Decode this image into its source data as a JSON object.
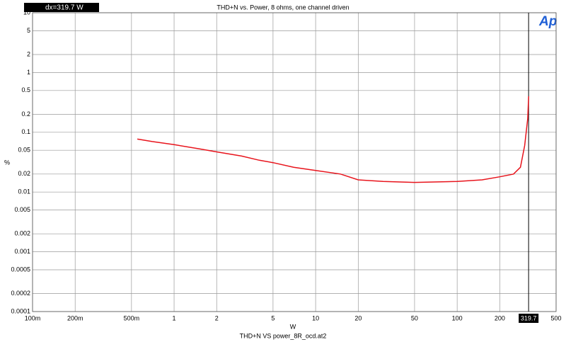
{
  "chart_data": {
    "type": "line",
    "title": "THD+N vs. Power, 8 ohms, one channel driven",
    "x_label": "W",
    "y_label": "%",
    "footer": "THD+N VS power_8R_ocd.at2",
    "logo": "Ap",
    "cursor_readout": "dx=319.7  W",
    "cursor_x": 319.7,
    "x_log": true,
    "y_log": true,
    "grid": true,
    "xlim": [
      0.1,
      500
    ],
    "ylim": [
      0.0001,
      10
    ],
    "xticks": [
      {
        "value": 0.1,
        "label": "100m"
      },
      {
        "value": 0.2,
        "label": "200m"
      },
      {
        "value": 0.5,
        "label": "500m"
      },
      1,
      2,
      5,
      10,
      20,
      50,
      100,
      200,
      500
    ],
    "yticks": [
      10,
      5,
      2,
      1,
      0.5,
      0.2,
      0.1,
      0.05,
      0.02,
      0.01,
      0.005,
      0.002,
      0.001,
      0.0005,
      0.0002,
      0.0001
    ],
    "x": [
      0.55,
      0.7,
      1,
      1.5,
      2,
      3,
      4,
      5,
      7,
      10,
      15,
      20,
      30,
      50,
      100,
      150,
      200,
      250,
      280,
      300,
      315,
      320
    ],
    "series": [
      {
        "name": "THD+N",
        "color": "#e8141c",
        "values": [
          0.077,
          0.07,
          0.062,
          0.053,
          0.047,
          0.04,
          0.034,
          0.031,
          0.026,
          0.023,
          0.02,
          0.016,
          0.015,
          0.0145,
          0.015,
          0.016,
          0.018,
          0.02,
          0.026,
          0.06,
          0.17,
          0.4
        ]
      }
    ]
  }
}
